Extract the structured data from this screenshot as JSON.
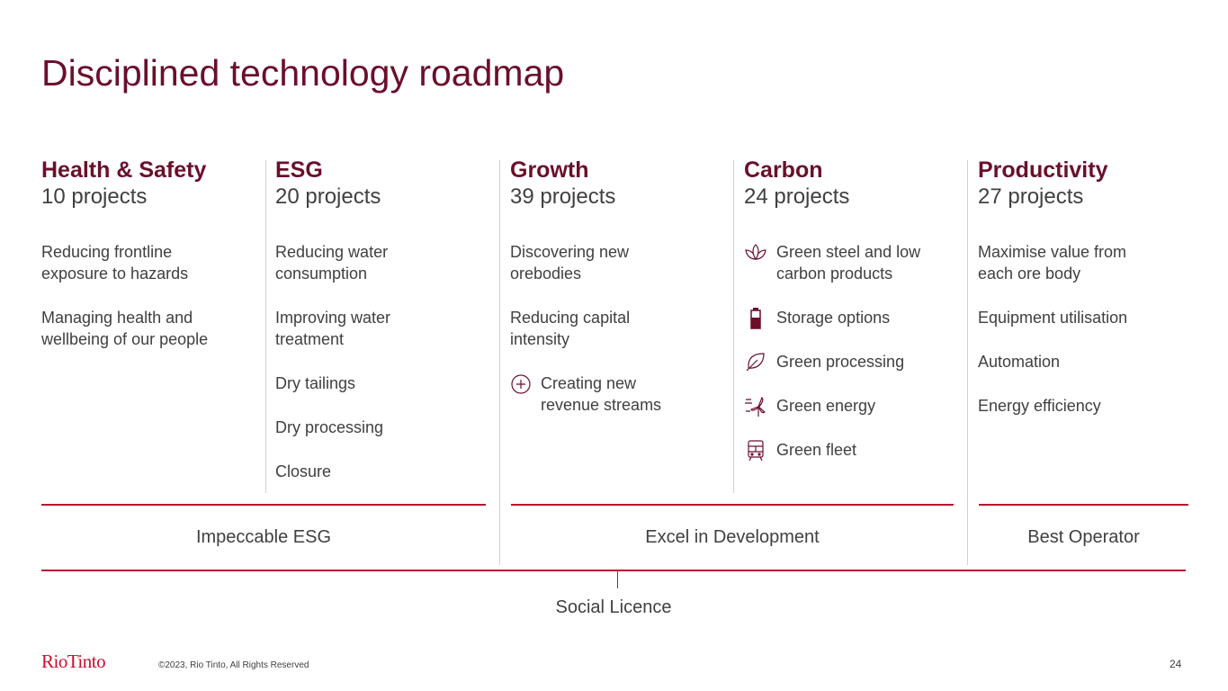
{
  "title": "Disciplined technology roadmap",
  "columns": [
    {
      "heading": "Health & Safety",
      "count": "10 projects",
      "items": [
        "Reducing frontline exposure to hazards",
        "Managing health and wellbeing of our people"
      ]
    },
    {
      "heading": "ESG",
      "count": "20 projects",
      "items": [
        "Reducing water consumption",
        "Improving water treatment",
        "Dry tailings",
        "Dry processing",
        "Closure"
      ]
    },
    {
      "heading": "Growth",
      "count": "39 projects",
      "items": [
        "Discovering new orebodies",
        "Reducing capital intensity",
        "Creating new revenue streams"
      ]
    },
    {
      "heading": "Carbon",
      "count": "24 projects",
      "items": [
        "Green steel and low carbon products",
        "Storage options",
        "Green processing",
        "Green energy",
        "Green fleet"
      ]
    },
    {
      "heading": "Productivity",
      "count": "27 projects",
      "items": [
        "Maximise value from each ore body",
        "Equipment utilisation",
        "Automation",
        "Energy efficiency"
      ]
    }
  ],
  "pillars": [
    "Impeccable ESG",
    "Excel in Development",
    "Best Operator"
  ],
  "foundation": "Social Licence",
  "footer": {
    "logo": "RioTinto",
    "copyright": "©2023, Rio Tinto, All Rights Reserved",
    "page": "24"
  }
}
